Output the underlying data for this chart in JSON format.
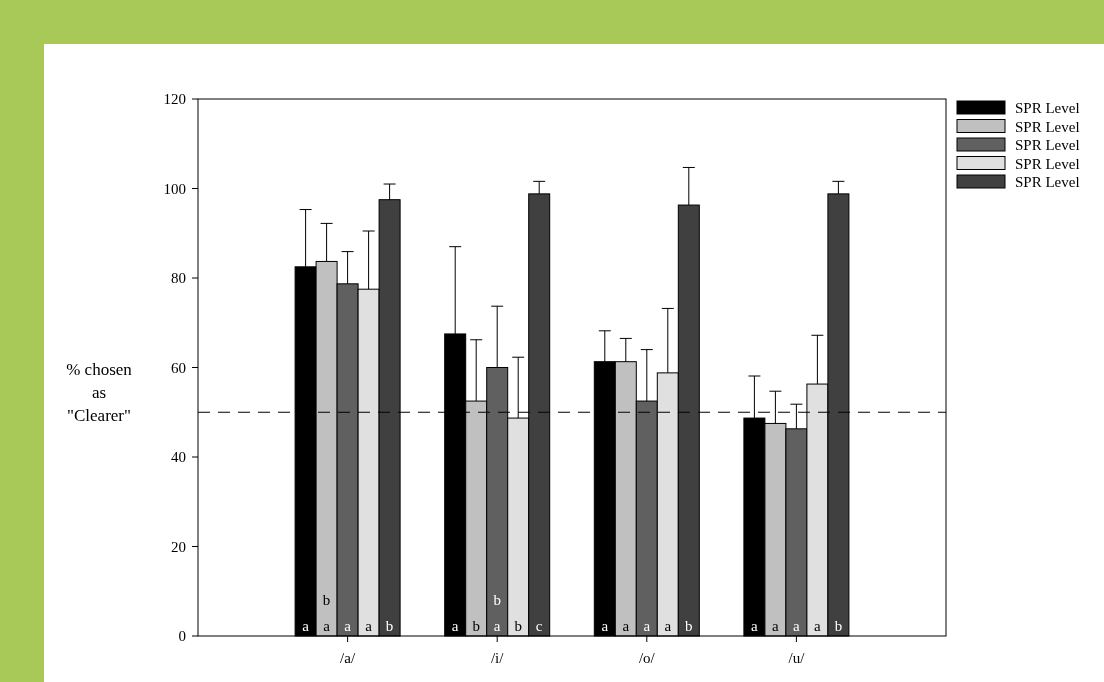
{
  "chart_data": {
    "type": "bar",
    "ylabel": "% chosen as \"Clearer\"",
    "categories": [
      "/a/",
      "/i/",
      "/o/",
      "/u/"
    ],
    "ylim": [
      0,
      120
    ],
    "yticks": [
      0,
      20,
      40,
      60,
      80,
      100,
      120
    ],
    "legend": "right",
    "ref_lines": [
      {
        "axis": "y",
        "value": 50,
        "line_style": "dashed",
        "color": "#000000"
      }
    ],
    "series": [
      {
        "name": "SPR Level",
        "color": "#000000",
        "values": [
          82.5,
          67.5,
          61.3,
          48.7
        ],
        "errors": [
          [
            82.5,
            95.3
          ],
          [
            67.5,
            87
          ],
          [
            61.3,
            68.2
          ],
          [
            48.7,
            58.1
          ]
        ],
        "value_labels": [
          "a",
          "a",
          "a",
          "a"
        ]
      },
      {
        "name": "SPR Level",
        "color": "#c0c0c0",
        "values": [
          83.7,
          52.5,
          61.3,
          47.5
        ],
        "errors": [
          [
            83.7,
            92.2
          ],
          [
            52.5,
            66.2
          ],
          [
            61.3,
            66.5
          ],
          [
            47.5,
            54.7
          ]
        ],
        "value_labels": [
          "ba",
          "b",
          "a",
          "a"
        ]
      },
      {
        "name": "SPR Level",
        "color": "#606060",
        "values": [
          78.7,
          60,
          52.5,
          46.3
        ],
        "errors": [
          [
            78.7,
            85.9
          ],
          [
            60,
            73.7
          ],
          [
            52.5,
            64
          ],
          [
            46.3,
            51.8
          ]
        ],
        "value_labels": [
          "a",
          "ba",
          "a",
          "a"
        ]
      },
      {
        "name": "SPR Level",
        "color": "#e0e0e0",
        "values": [
          77.5,
          48.7,
          58.8,
          56.3
        ],
        "errors": [
          [
            77.5,
            90.5
          ],
          [
            48.7,
            62.3
          ],
          [
            58.8,
            73.2
          ],
          [
            56.3,
            67.2
          ]
        ],
        "value_labels": [
          "a",
          "b",
          "a",
          "a"
        ]
      },
      {
        "name": "SPR Level",
        "color": "#404040",
        "values": [
          97.5,
          98.8,
          96.3,
          98.8
        ],
        "errors": [
          [
            97.5,
            101
          ],
          [
            98.8,
            101.6
          ],
          [
            96.3,
            104.7
          ],
          [
            98.8,
            101.6
          ]
        ],
        "value_labels": [
          "b",
          "c",
          "b",
          "b"
        ]
      }
    ]
  }
}
